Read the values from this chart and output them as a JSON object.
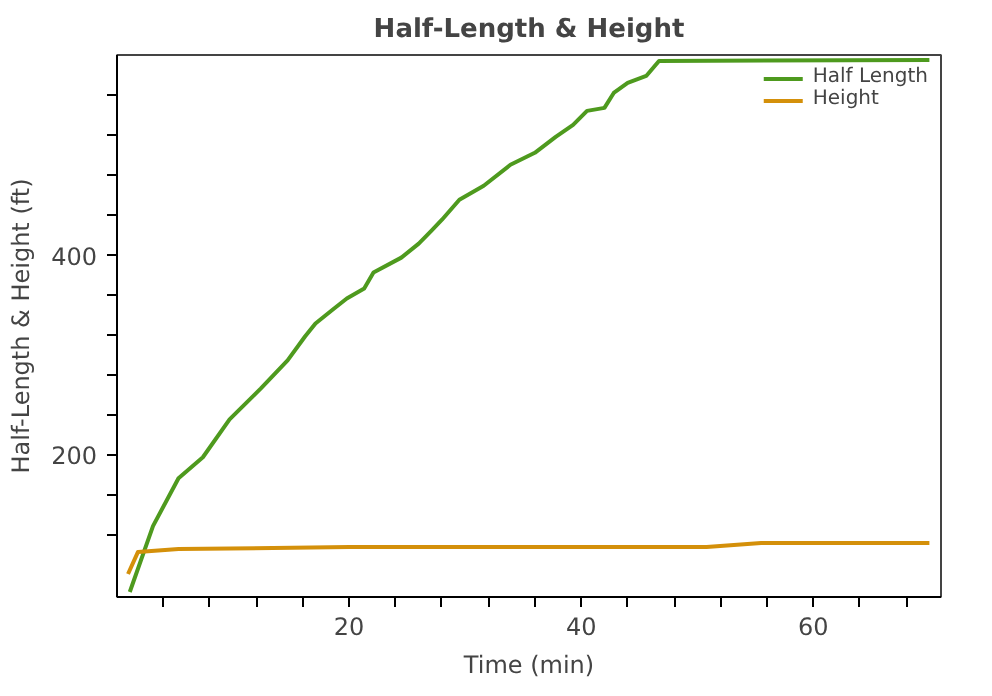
{
  "chart_data": {
    "type": "line",
    "title": "Half-Length & Height",
    "xlabel": "Time (min)",
    "ylabel": "Half-Length & Height (ft)",
    "xlim": [
      0,
      71
    ],
    "ylim": [
      58,
      601
    ],
    "xticks": [
      {
        "value": 4,
        "label": null
      },
      {
        "value": 8,
        "label": null
      },
      {
        "value": 12,
        "label": null
      },
      {
        "value": 16,
        "label": null
      },
      20,
      {
        "value": 24,
        "label": null
      },
      {
        "value": 28,
        "label": null
      },
      {
        "value": 32,
        "label": null
      },
      {
        "value": 36,
        "label": null
      },
      40,
      {
        "value": 44,
        "label": null
      },
      {
        "value": 48,
        "label": null
      },
      {
        "value": 52,
        "label": null
      },
      {
        "value": 56,
        "label": null
      },
      60,
      {
        "value": 64,
        "label": null
      },
      {
        "value": 68,
        "label": null
      }
    ],
    "yticks": [
      {
        "value": 120,
        "label": null
      },
      {
        "value": 160,
        "label": null
      },
      200,
      {
        "value": 240,
        "label": null
      },
      {
        "value": 280,
        "label": null
      },
      {
        "value": 320,
        "label": null
      },
      {
        "value": 360,
        "label": null
      },
      400,
      {
        "value": 440,
        "label": null
      },
      {
        "value": 480,
        "label": null
      },
      {
        "value": 520,
        "label": null
      },
      {
        "value": 560,
        "label": null
      }
    ],
    "grid": false,
    "legend": "top right",
    "series": [
      {
        "name": "Half Length",
        "color": "#4e9a1e",
        "x": [
          1.1,
          3.1,
          5.3,
          7.4,
          9.7,
          12.4,
          14.7,
          16.2,
          17.1,
          18.6,
          19.8,
          21.3,
          22.1,
          24.5,
          26,
          27.1,
          28,
          29.5,
          31.6,
          33.9,
          36,
          37.8,
          39.3,
          40.5,
          42,
          42.8,
          44,
          45.6,
          46.7,
          70
        ],
        "values": [
          63,
          129,
          177,
          198,
          236,
          267,
          295,
          319,
          332,
          346,
          357,
          367,
          383,
          398,
          412,
          425,
          436,
          456,
          470,
          491,
          503,
          519,
          531,
          545,
          548,
          563,
          573,
          580,
          595,
          596
        ]
      },
      {
        "name": "Height",
        "color": "#d4900a",
        "x": [
          0.95,
          1.8,
          5.3,
          20,
          30.1,
          50.8,
          55.5,
          70
        ],
        "values": [
          81,
          103,
          106,
          108,
          108,
          108,
          112,
          112
        ]
      }
    ]
  }
}
